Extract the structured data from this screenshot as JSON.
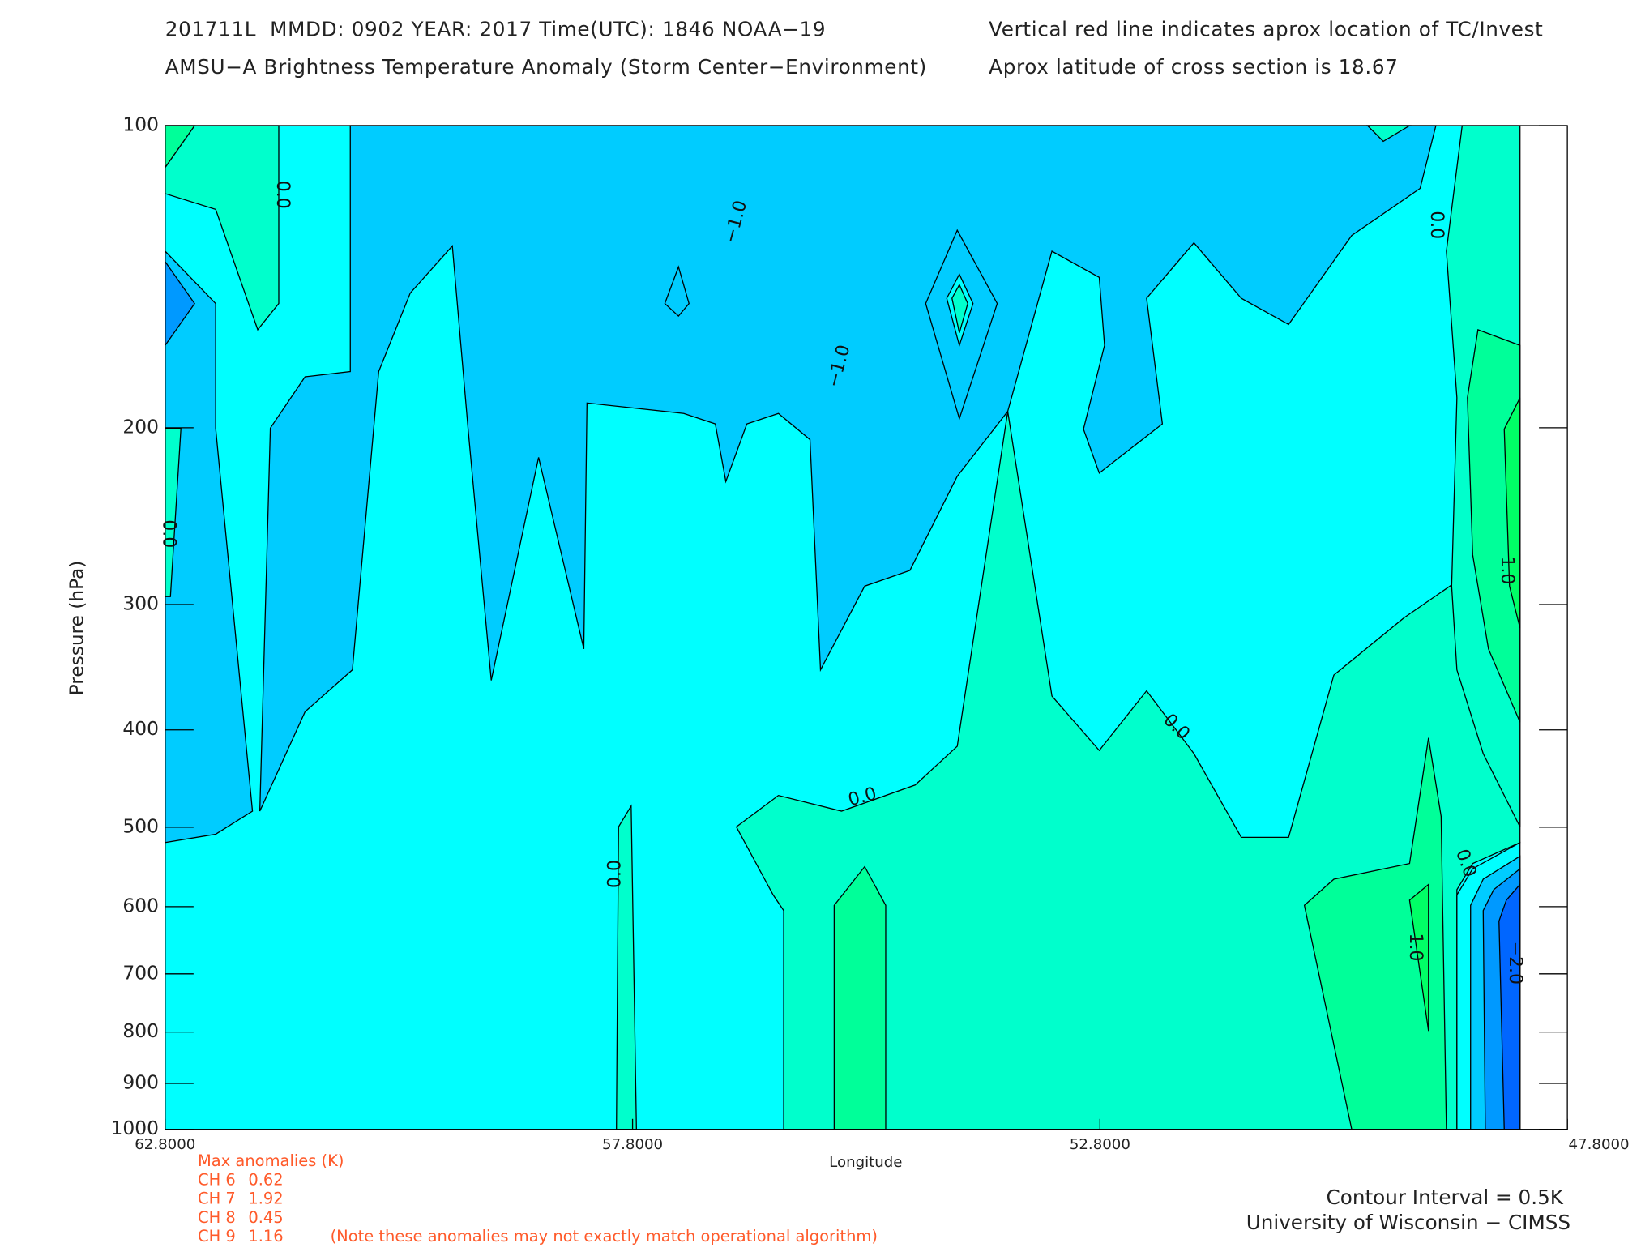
{
  "chart_data": {
    "type": "contour",
    "header": [
      "201711L  MMDD: 0902 YEAR: 2017 Time(UTC): 1846 NOAA−19",
      "AMSU−A Brightness Temperature Anomaly (Storm Center−Environment)",
      "Vertical red line indicates aprox location of TC/Invest",
      "Aprox latitude of cross section is 18.67"
    ],
    "xlabel": "Longitude",
    "ylabel": "Pressure (hPa)",
    "xlim": [
      62.8,
      47.8
    ],
    "xticks": [
      {
        "value": 62.8,
        "label": "62.8000"
      },
      {
        "value": 57.8,
        "label": "57.8000"
      },
      {
        "value": 52.8,
        "label": "52.8000"
      },
      {
        "value": 47.8,
        "label": "47.8000"
      }
    ],
    "ylim": [
      1000,
      100
    ],
    "yscale": "log",
    "yticks": [
      100,
      200,
      300,
      400,
      500,
      600,
      700,
      800,
      900,
      1000
    ],
    "contour_labels": [
      "0.0",
      "−1.0",
      "−1.0",
      "0.0",
      "0.0",
      "0.0",
      "0.0",
      "0.0",
      "1.0",
      "0.0",
      "1.0",
      "−2.0"
    ],
    "max_anomalies": {
      "title": "Max anomalies (K)",
      "rows": [
        {
          "label": "CH 6",
          "value": 0.62
        },
        {
          "label": "CH 7",
          "value": 1.92
        },
        {
          "label": "CH 8",
          "value": 0.45
        },
        {
          "label": "CH 9",
          "value": 1.16
        }
      ],
      "note": "(Note these anomalies may not exactly match operational algorithm)"
    },
    "footer": [
      "Contour Interval = 0.5K",
      "University of Wisconsin − CIMSS"
    ]
  }
}
